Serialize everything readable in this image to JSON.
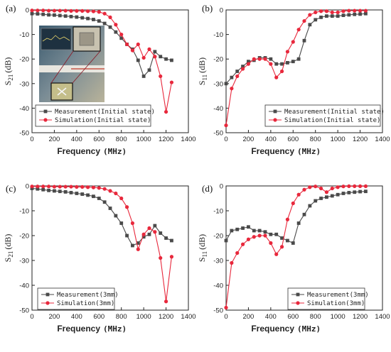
{
  "colors": {
    "measurement": "#4a4a4a",
    "simulation": "#e8283c"
  },
  "panels": [
    {
      "label": "(a)",
      "xlabel": "Frequency",
      "xunit": "(MHz)",
      "ylabel_main": "S",
      "ylabel_sub": "21",
      "ylabel_unit": "(dB)"
    },
    {
      "label": "(b)",
      "xlabel": "Frequency",
      "xunit": "(MHz)",
      "ylabel_main": "S",
      "ylabel_sub": "11",
      "ylabel_unit": "(dB)"
    },
    {
      "label": "(c)",
      "xlabel": "Frequency",
      "xunit": "(MHz)",
      "ylabel_main": "S",
      "ylabel_sub": "21",
      "ylabel_unit": "(dB)"
    },
    {
      "label": "(d)",
      "xlabel": "Frequency",
      "xunit": "(MHz)",
      "ylabel_main": "S",
      "ylabel_sub": "11",
      "ylabel_unit": "(dB)"
    }
  ],
  "chart_data": [
    {
      "type": "line",
      "xlabel": "Frequency (MHz)",
      "ylabel": "S21 (dB)",
      "xlim": [
        0,
        1400
      ],
      "ylim": [
        -50,
        0
      ],
      "xticks": [
        0,
        200,
        400,
        600,
        800,
        1000,
        1200,
        1400
      ],
      "yticks": [
        0,
        -10,
        -20,
        -30,
        -40,
        -50
      ],
      "legend_position": "bottom-left",
      "has_inset_photo": true,
      "series": [
        {
          "name": "Measurement(Initial state)",
          "color_key": "measurement",
          "marker": "square",
          "x": [
            0,
            50,
            100,
            150,
            200,
            250,
            300,
            350,
            400,
            450,
            500,
            550,
            600,
            650,
            700,
            750,
            800,
            850,
            900,
            950,
            1000,
            1050,
            1100,
            1150,
            1200,
            1250
          ],
          "y": [
            -1.5,
            -1.6,
            -1.8,
            -2,
            -2.1,
            -2.3,
            -2.5,
            -2.7,
            -2.9,
            -3.2,
            -3.5,
            -3.9,
            -4.5,
            -5.5,
            -7,
            -9,
            -11.5,
            -14,
            -16,
            -20.5,
            -27,
            -24.5,
            -17,
            -19,
            -20,
            -20.5
          ]
        },
        {
          "name": "Simulation(Initial state)",
          "color_key": "simulation",
          "marker": "circle",
          "x": [
            0,
            50,
            100,
            150,
            200,
            250,
            300,
            350,
            400,
            450,
            500,
            550,
            600,
            650,
            700,
            750,
            800,
            850,
            900,
            950,
            1000,
            1050,
            1100,
            1150,
            1200,
            1250
          ],
          "y": [
            -0.2,
            -0.2,
            -0.2,
            -0.3,
            -0.3,
            -0.3,
            -0.3,
            -0.4,
            -0.4,
            -0.4,
            -0.5,
            -0.6,
            -0.8,
            -1.5,
            -3,
            -6,
            -10,
            -14,
            -16.5,
            -14,
            -19.5,
            -16,
            -19,
            -27,
            -41.5,
            -29.5
          ]
        }
      ]
    },
    {
      "type": "line",
      "xlabel": "Frequency (MHz)",
      "ylabel": "S11 (dB)",
      "xlim": [
        0,
        1400
      ],
      "ylim": [
        -50,
        0
      ],
      "xticks": [
        0,
        200,
        400,
        600,
        800,
        1000,
        1200,
        1400
      ],
      "yticks": [
        0,
        -10,
        -20,
        -30,
        -40,
        -50
      ],
      "legend_position": "bottom-right",
      "series": [
        {
          "name": "Measurement(Initial state)",
          "color_key": "measurement",
          "marker": "square",
          "x": [
            0,
            50,
            100,
            150,
            200,
            250,
            300,
            350,
            400,
            450,
            500,
            550,
            600,
            650,
            700,
            750,
            800,
            850,
            900,
            950,
            1000,
            1050,
            1100,
            1150,
            1200,
            1250
          ],
          "y": [
            -30,
            -27.5,
            -25,
            -23,
            -21,
            -20.5,
            -19.5,
            -19.5,
            -20,
            -22,
            -22,
            -21.5,
            -21,
            -20,
            -12.5,
            -6,
            -4,
            -3,
            -2.5,
            -2.5,
            -2.5,
            -2.2,
            -2,
            -1.8,
            -1.7,
            -1.5
          ]
        },
        {
          "name": "Simulation(Initial state)",
          "color_key": "simulation",
          "marker": "circle",
          "x": [
            0,
            50,
            100,
            150,
            200,
            250,
            300,
            350,
            400,
            450,
            500,
            550,
            600,
            650,
            700,
            750,
            800,
            850,
            900,
            950,
            1000,
            1050,
            1100,
            1150,
            1200,
            1250
          ],
          "y": [
            -47,
            -32,
            -27,
            -24,
            -22,
            -20,
            -20,
            -20,
            -22,
            -27.5,
            -25,
            -17,
            -13,
            -8,
            -4.5,
            -2,
            -1,
            -0.5,
            -0.5,
            -1,
            -1,
            -0.5,
            -0.3,
            -0.3,
            -0.3,
            -0.3
          ]
        }
      ]
    },
    {
      "type": "line",
      "xlabel": "Frequency (MHz)",
      "ylabel": "S21 (dB)",
      "xlim": [
        0,
        1400
      ],
      "ylim": [
        -50,
        0
      ],
      "xticks": [
        0,
        200,
        400,
        600,
        800,
        1000,
        1200,
        1400
      ],
      "yticks": [
        0,
        -10,
        -20,
        -30,
        -40,
        -50
      ],
      "legend_position": "bottom-left",
      "series": [
        {
          "name": "Measurement(3mm)",
          "color_key": "measurement",
          "marker": "square",
          "x": [
            0,
            50,
            100,
            150,
            200,
            250,
            300,
            350,
            400,
            450,
            500,
            550,
            600,
            650,
            700,
            750,
            800,
            850,
            900,
            950,
            1000,
            1050,
            1100,
            1150,
            1200,
            1250
          ],
          "y": [
            -1,
            -1.2,
            -1.5,
            -1.8,
            -2,
            -2.2,
            -2.4,
            -2.7,
            -3,
            -3.3,
            -3.7,
            -4.2,
            -5,
            -6.5,
            -9,
            -12,
            -15,
            -20,
            -24,
            -23,
            -20.5,
            -19.5,
            -16,
            -19,
            -21,
            -22
          ]
        },
        {
          "name": "Simulation(3mm)",
          "color_key": "simulation",
          "marker": "circle",
          "x": [
            0,
            50,
            100,
            150,
            200,
            250,
            300,
            350,
            400,
            450,
            500,
            550,
            600,
            650,
            700,
            750,
            800,
            850,
            900,
            950,
            1000,
            1050,
            1100,
            1150,
            1200,
            1250
          ],
          "y": [
            -0.2,
            -0.2,
            -0.2,
            -0.2,
            -0.3,
            -0.3,
            -0.3,
            -0.3,
            -0.4,
            -0.4,
            -0.5,
            -0.6,
            -0.8,
            -1.2,
            -2,
            -3,
            -5,
            -8.5,
            -15,
            -25.5,
            -19.5,
            -17,
            -18.5,
            -29,
            -46.5,
            -28.5
          ]
        }
      ]
    },
    {
      "type": "line",
      "xlabel": "Frequency (MHz)",
      "ylabel": "S11 (dB)",
      "xlim": [
        0,
        1400
      ],
      "ylim": [
        -50,
        0
      ],
      "xticks": [
        0,
        200,
        400,
        600,
        800,
        1000,
        1200,
        1400
      ],
      "yticks": [
        0,
        -10,
        -20,
        -30,
        -40,
        -50
      ],
      "legend_position": "bottom-right",
      "series": [
        {
          "name": "Measurement(3mm)",
          "color_key": "measurement",
          "marker": "square",
          "x": [
            0,
            50,
            100,
            150,
            200,
            250,
            300,
            350,
            400,
            450,
            500,
            550,
            600,
            650,
            700,
            750,
            800,
            850,
            900,
            950,
            1000,
            1050,
            1100,
            1150,
            1200,
            1250
          ],
          "y": [
            -22,
            -18,
            -17.5,
            -17,
            -16.5,
            -18,
            -18,
            -18.5,
            -19.5,
            -19.5,
            -21,
            -22,
            -23,
            -15,
            -11.5,
            -8,
            -6,
            -5,
            -4.5,
            -4,
            -3.5,
            -3,
            -2.7,
            -2.5,
            -2.3,
            -2.2
          ]
        },
        {
          "name": "Simulation(3mm)",
          "color_key": "simulation",
          "marker": "circle",
          "x": [
            0,
            50,
            100,
            150,
            200,
            250,
            300,
            350,
            400,
            450,
            500,
            550,
            600,
            650,
            700,
            750,
            800,
            850,
            900,
            950,
            1000,
            1050,
            1100,
            1150,
            1200,
            1250
          ],
          "y": [
            -49,
            -31,
            -27,
            -23.5,
            -21.5,
            -20.5,
            -20,
            -20,
            -23,
            -27.5,
            -24.5,
            -13.5,
            -7,
            -3.5,
            -1.5,
            -0.5,
            -0.2,
            -1,
            -2.5,
            -1,
            -0.5,
            -0.2,
            -0.1,
            -0.1,
            -0.1,
            -0.1
          ]
        }
      ]
    }
  ]
}
